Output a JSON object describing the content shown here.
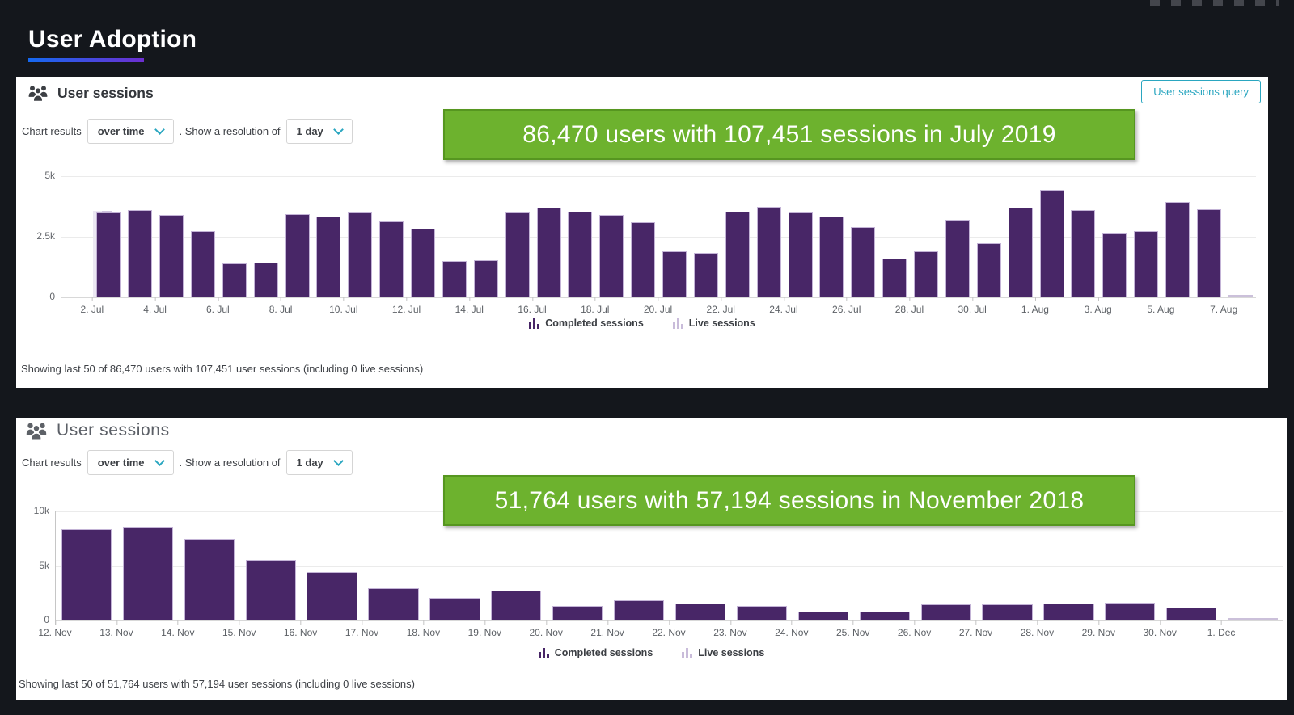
{
  "page": {
    "title": "User Adoption"
  },
  "colors": {
    "page_background": "#14171c",
    "panel_background": "#ffffff",
    "completed_bar": "#482667",
    "live_bar": "#cbc0da",
    "banner_green": "#6db22e",
    "banner_border": "#569620",
    "accent_teal": "#2aa6c0",
    "underline_gradient_from": "#1569f0",
    "underline_gradient_to": "#6d2fd0"
  },
  "panels": [
    {
      "title": "User sessions",
      "query_button": "User sessions query",
      "controls": {
        "label": "Chart results",
        "chart_by": "over time",
        "middle": ". Show a resolution of",
        "resolution": "1 day"
      },
      "banner": "86,470 users with 107,451 sessions in July 2019",
      "legend": [
        "Completed sessions",
        "Live sessions"
      ],
      "footer": "Showing last 50 of 86,470 users with 107,451 user sessions (including 0 live sessions)"
    },
    {
      "title": "User sessions",
      "controls": {
        "label": "Chart results",
        "chart_by": "over time",
        "middle": ". Show a resolution of",
        "resolution": "1 day"
      },
      "banner": "51,764 users with 57,194 sessions in November 2018",
      "legend": [
        "Completed sessions",
        "Live sessions"
      ],
      "footer": "Showing last 50 of 51,764 users with 57,194 user sessions (including 0 live sessions)"
    }
  ],
  "chart_data": [
    {
      "type": "bar",
      "title": "User sessions",
      "xlabel": "",
      "ylabel": "",
      "ylim": [
        0,
        5000
      ],
      "y_ticks": [
        "5k",
        "2.5k",
        "0"
      ],
      "grid": true,
      "legend_position": "bottom",
      "lead_empty": 1,
      "label_step": 2,
      "ghost_on_first": true,
      "categories": [
        "2. Jul",
        "3. Jul",
        "4. Jul",
        "5. Jul",
        "6. Jul",
        "7. Jul",
        "8. Jul",
        "9. Jul",
        "10. Jul",
        "11. Jul",
        "12. Jul",
        "13. Jul",
        "14. Jul",
        "15. Jul",
        "16. Jul",
        "17. Jul",
        "18. Jul",
        "19. Jul",
        "20. Jul",
        "21. Jul",
        "22. Jul",
        "23. Jul",
        "24. Jul",
        "25. Jul",
        "26. Jul",
        "27. Jul",
        "28. Jul",
        "29. Jul",
        "30. Jul",
        "31. Jul",
        "1. Aug",
        "2. Aug",
        "3. Aug",
        "4. Aug",
        "5. Aug",
        "6. Aug"
      ],
      "values": [
        3500,
        3600,
        3400,
        2750,
        1400,
        1450,
        3450,
        3350,
        3500,
        3150,
        2850,
        1500,
        1550,
        3500,
        3700,
        3550,
        3400,
        3100,
        1900,
        1850,
        3550,
        3750,
        3500,
        3350,
        2900,
        1600,
        1900,
        3200,
        2250,
        3700,
        4450,
        3600,
        2650,
        2750,
        3950,
        3650
      ],
      "series_name": "Completed sessions",
      "live_tail": {
        "category": "7. Aug",
        "value": 70,
        "series_name": "Live sessions"
      }
    },
    {
      "type": "bar",
      "title": "User sessions",
      "xlabel": "",
      "ylabel": "",
      "ylim": [
        0,
        10000
      ],
      "y_ticks": [
        "10k",
        "5k",
        "0"
      ],
      "grid": true,
      "legend_position": "bottom",
      "lead_empty": 0,
      "label_step": 1,
      "ghost_on_first": false,
      "categories": [
        "12. Nov",
        "13. Nov",
        "14. Nov",
        "15. Nov",
        "16. Nov",
        "17. Nov",
        "18. Nov",
        "19. Nov",
        "20. Nov",
        "21. Nov",
        "22. Nov",
        "23. Nov",
        "24. Nov",
        "25. Nov",
        "26. Nov",
        "27. Nov",
        "28. Nov",
        "29. Nov",
        "30. Nov"
      ],
      "values": [
        8350,
        8600,
        7500,
        5550,
        4450,
        2950,
        2100,
        2750,
        1300,
        1850,
        1550,
        1350,
        800,
        850,
        1500,
        1450,
        1550,
        1650,
        1200
      ],
      "series_name": "Completed sessions",
      "live_tail": {
        "category": "1. Dec",
        "value": 70,
        "series_name": "Live sessions"
      }
    }
  ]
}
